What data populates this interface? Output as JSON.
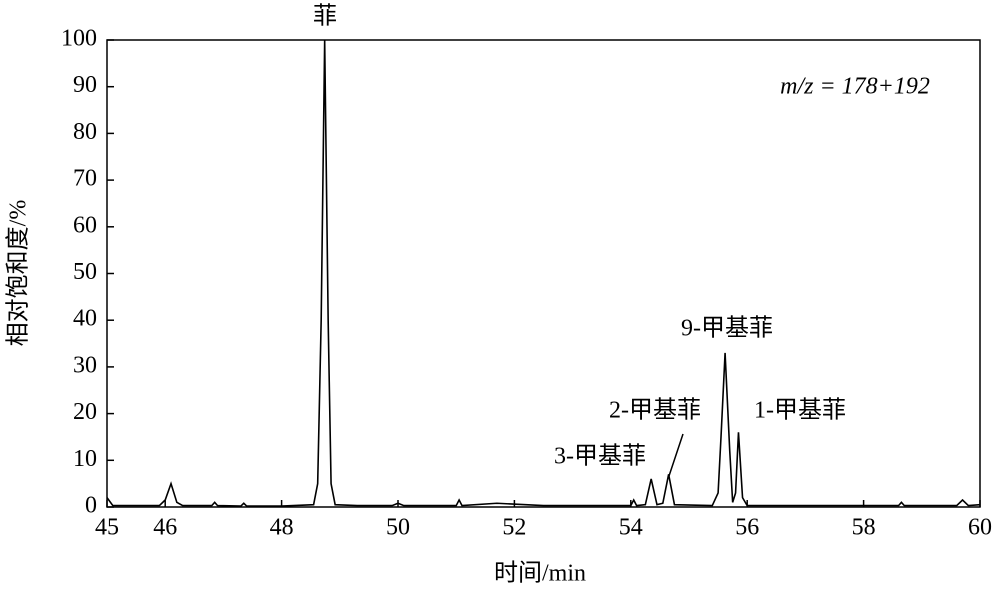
{
  "chart_data": {
    "type": "line",
    "x_label": "时间/min",
    "y_label": "相对饱和度/%",
    "annotations": [
      "菲",
      "9-甲基菲",
      "2-甲基菲",
      "1-甲基菲",
      "3-甲基菲",
      "m/z = 178+192"
    ],
    "x": [
      45.0,
      45.1,
      45.5,
      45.9,
      46.0,
      46.1,
      46.2,
      46.3,
      46.8,
      46.85,
      46.9,
      47.3,
      47.35,
      47.4,
      48.0,
      48.55,
      48.62,
      48.68,
      48.74,
      48.8,
      48.85,
      48.92,
      49.3,
      49.9,
      50.0,
      50.1,
      51.0,
      51.05,
      51.1,
      51.7,
      52.5,
      53.5,
      54.0,
      54.05,
      54.1,
      54.25,
      54.35,
      54.45,
      54.55,
      54.65,
      54.75,
      55.4,
      55.5,
      55.55,
      55.62,
      55.7,
      55.75,
      55.8,
      55.85,
      55.92,
      56.0,
      56.8,
      57.5,
      58.0,
      58.6,
      58.65,
      58.7,
      59.6,
      59.7,
      59.8,
      60.0
    ],
    "series": [
      {
        "color": "#000000",
        "values": [
          2,
          0.3,
          0.3,
          0.3,
          1.5,
          5,
          1,
          0.3,
          0.3,
          1,
          0.3,
          0.2,
          0.8,
          0.2,
          0.2,
          0.5,
          5,
          40,
          100,
          40,
          5,
          0.5,
          0.3,
          0.3,
          0.8,
          0.3,
          0.3,
          1.5,
          0.3,
          0.8,
          0.3,
          0.3,
          0.3,
          1.5,
          0.3,
          0.5,
          6,
          0.5,
          0.8,
          7,
          0.5,
          0.3,
          3,
          15,
          33,
          12,
          1,
          3,
          16,
          2,
          0.3,
          0.3,
          0.3,
          0.3,
          0.3,
          1,
          0.3,
          0.3,
          1.5,
          0.3,
          0.5
        ]
      }
    ],
    "xlim": [
      45,
      60
    ],
    "xticks": [
      45,
      46,
      48,
      50,
      52,
      54,
      56,
      58,
      60
    ],
    "ylim": [
      0,
      100
    ],
    "yticks": [
      0,
      10,
      20,
      30,
      40,
      50,
      60,
      70,
      80,
      90,
      100
    ]
  }
}
